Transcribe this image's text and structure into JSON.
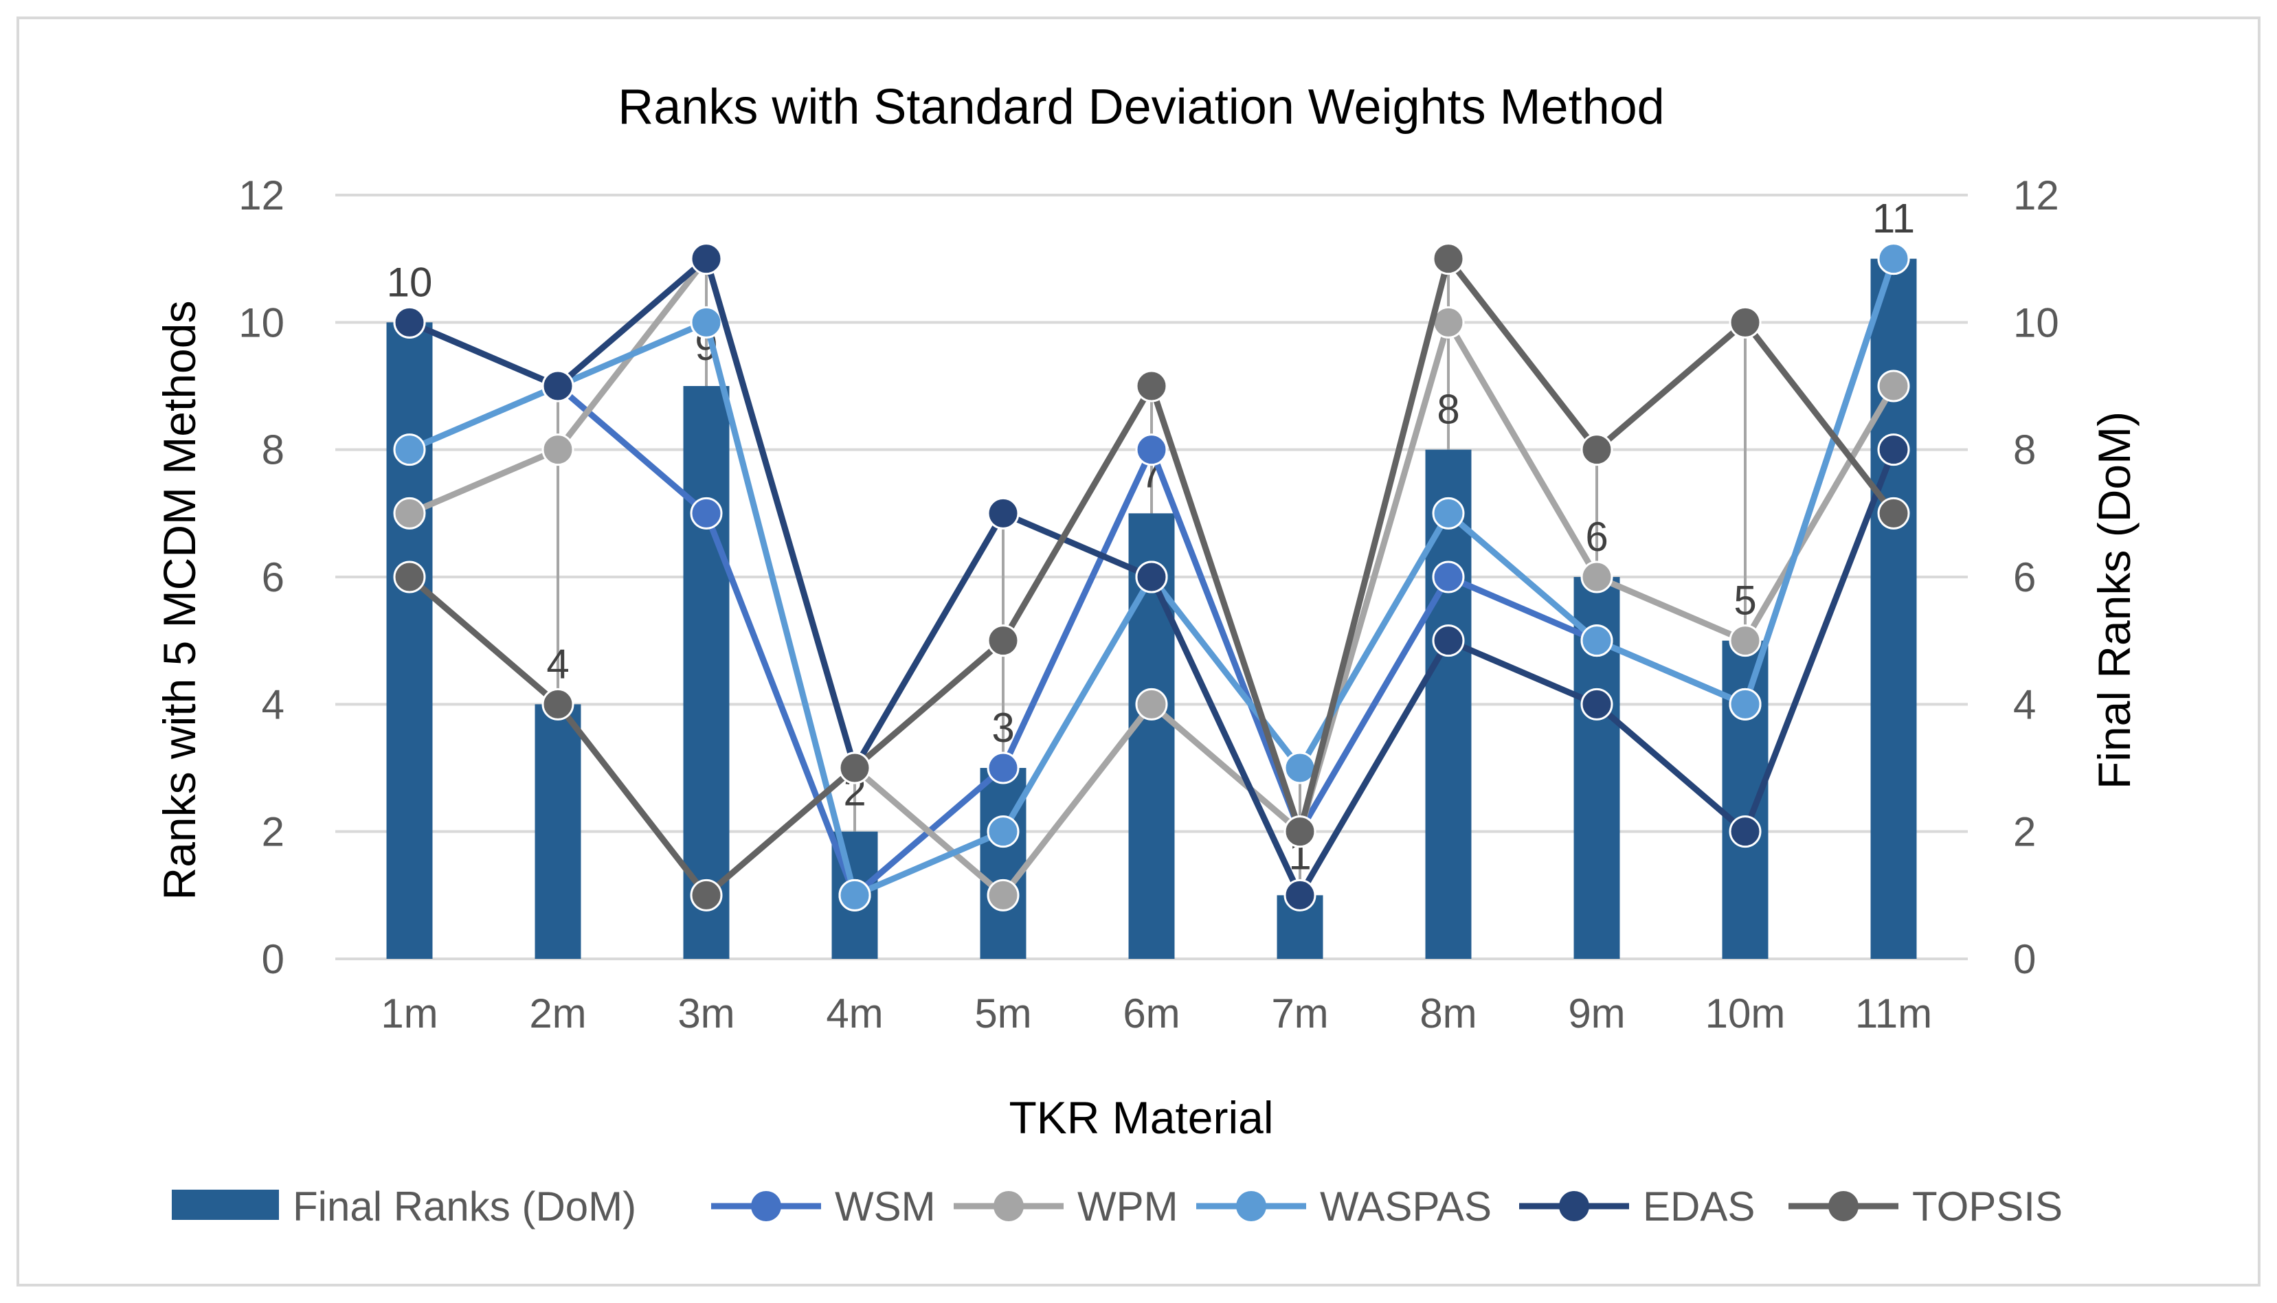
{
  "chart_data": {
    "type": "bar",
    "title": "Ranks with Standard Deviation Weights Method",
    "xlabel": "TKR Material",
    "ylabel": "Ranks with 5 MCDM Methods",
    "y2label": "Final Ranks (DoM)",
    "ylim": [
      0,
      12
    ],
    "y2lim": [
      0,
      12
    ],
    "yticks": [
      "0",
      "2",
      "4",
      "6",
      "8",
      "10",
      "12"
    ],
    "y2ticks": [
      "0",
      "2",
      "4",
      "6",
      "8",
      "10",
      "12"
    ],
    "grid": true,
    "legend": "bottom",
    "categories": [
      "1m",
      "2m",
      "3m",
      "4m",
      "5m",
      "6m",
      "7m",
      "8m",
      "9m",
      "10m",
      "11m"
    ],
    "bar_series": {
      "name": "Final Ranks (DoM)",
      "values": [
        10,
        4,
        9,
        2,
        3,
        7,
        1,
        8,
        6,
        5,
        11
      ],
      "labels": [
        "10",
        "4",
        "9",
        "2",
        "3",
        "7",
        "1",
        "8",
        "6",
        "5",
        "11"
      ],
      "color": "#255e91"
    },
    "series": [
      {
        "name": "WSM",
        "values": [
          10,
          9,
          7,
          1,
          3,
          8,
          2,
          6,
          5,
          4,
          11
        ],
        "color": "#4472c4"
      },
      {
        "name": "WPM",
        "values": [
          7,
          8,
          11,
          3,
          1,
          4,
          2,
          10,
          6,
          5,
          9
        ],
        "color": "#a5a5a5"
      },
      {
        "name": "WASPAS",
        "values": [
          8,
          9,
          10,
          1,
          2,
          6,
          3,
          7,
          5,
          4,
          11
        ],
        "color": "#5b9bd5"
      },
      {
        "name": "EDAS",
        "values": [
          10,
          9,
          11,
          3,
          7,
          6,
          1,
          5,
          4,
          2,
          8
        ],
        "color": "#264478"
      },
      {
        "name": "TOPSIS",
        "values": [
          6,
          4,
          1,
          3,
          5,
          9,
          2,
          11,
          8,
          10,
          7
        ],
        "color": "#636363"
      }
    ]
  }
}
